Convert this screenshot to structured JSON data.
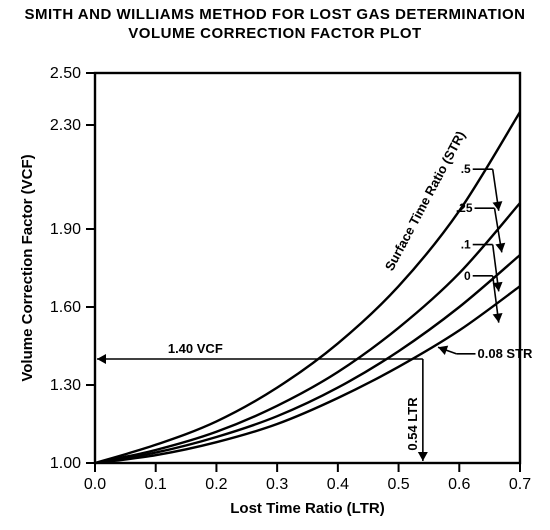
{
  "title": {
    "line1": "SMITH AND WILLIAMS METHOD FOR LOST GAS DETERMINATION",
    "line2": "VOLUME CORRECTION FACTOR PLOT"
  },
  "chart": {
    "type": "line",
    "background_color": "#ffffff",
    "stroke_color": "#000000",
    "line_width": 2.4,
    "x": {
      "label": "Lost Time Ratio (LTR)",
      "min": 0.0,
      "max": 0.7,
      "ticks": [
        0.0,
        0.1,
        0.2,
        0.3,
        0.4,
        0.5,
        0.6,
        0.7
      ]
    },
    "y": {
      "label": "Volume Correction Factor (VCF)",
      "min": 1.0,
      "max": 2.5,
      "ticks": [
        1.0,
        1.3,
        1.6,
        1.9,
        2.3,
        2.5
      ],
      "tick_labels": [
        "1.00",
        "1.30",
        "1.60",
        "1.90",
        "2.30",
        "2.50"
      ]
    },
    "series_label": "Surface Time Ratio (STR)",
    "series": [
      {
        "str": "0",
        "label": "0",
        "points": [
          [
            0.0,
            1.0
          ],
          [
            0.1,
            1.03
          ],
          [
            0.2,
            1.08
          ],
          [
            0.3,
            1.15
          ],
          [
            0.4,
            1.25
          ],
          [
            0.5,
            1.37
          ],
          [
            0.6,
            1.51
          ],
          [
            0.7,
            1.68
          ]
        ]
      },
      {
        "str": "0.1",
        "label": ".1",
        "points": [
          [
            0.0,
            1.0
          ],
          [
            0.1,
            1.04
          ],
          [
            0.2,
            1.1
          ],
          [
            0.3,
            1.18
          ],
          [
            0.4,
            1.29
          ],
          [
            0.5,
            1.43
          ],
          [
            0.6,
            1.6
          ],
          [
            0.7,
            1.8
          ]
        ]
      },
      {
        "str": "0.25",
        "label": ".25",
        "points": [
          [
            0.0,
            1.0
          ],
          [
            0.1,
            1.05
          ],
          [
            0.2,
            1.12
          ],
          [
            0.3,
            1.22
          ],
          [
            0.4,
            1.35
          ],
          [
            0.5,
            1.52
          ],
          [
            0.6,
            1.73
          ],
          [
            0.7,
            2.0
          ]
        ]
      },
      {
        "str": "0.5",
        "label": ".5",
        "points": [
          [
            0.0,
            1.0
          ],
          [
            0.1,
            1.07
          ],
          [
            0.2,
            1.16
          ],
          [
            0.3,
            1.29
          ],
          [
            0.4,
            1.46
          ],
          [
            0.5,
            1.68
          ],
          [
            0.6,
            1.97
          ],
          [
            0.7,
            2.35
          ]
        ]
      }
    ],
    "annotations": {
      "vcf_line": {
        "y": 1.4,
        "x_end": 0.54,
        "label": "1.40 VCF"
      },
      "ltr_line": {
        "x": 0.54,
        "y_end": 1.4,
        "label": "0.54 LTR"
      },
      "str_pointer": {
        "label": "0.08 STR"
      }
    }
  }
}
